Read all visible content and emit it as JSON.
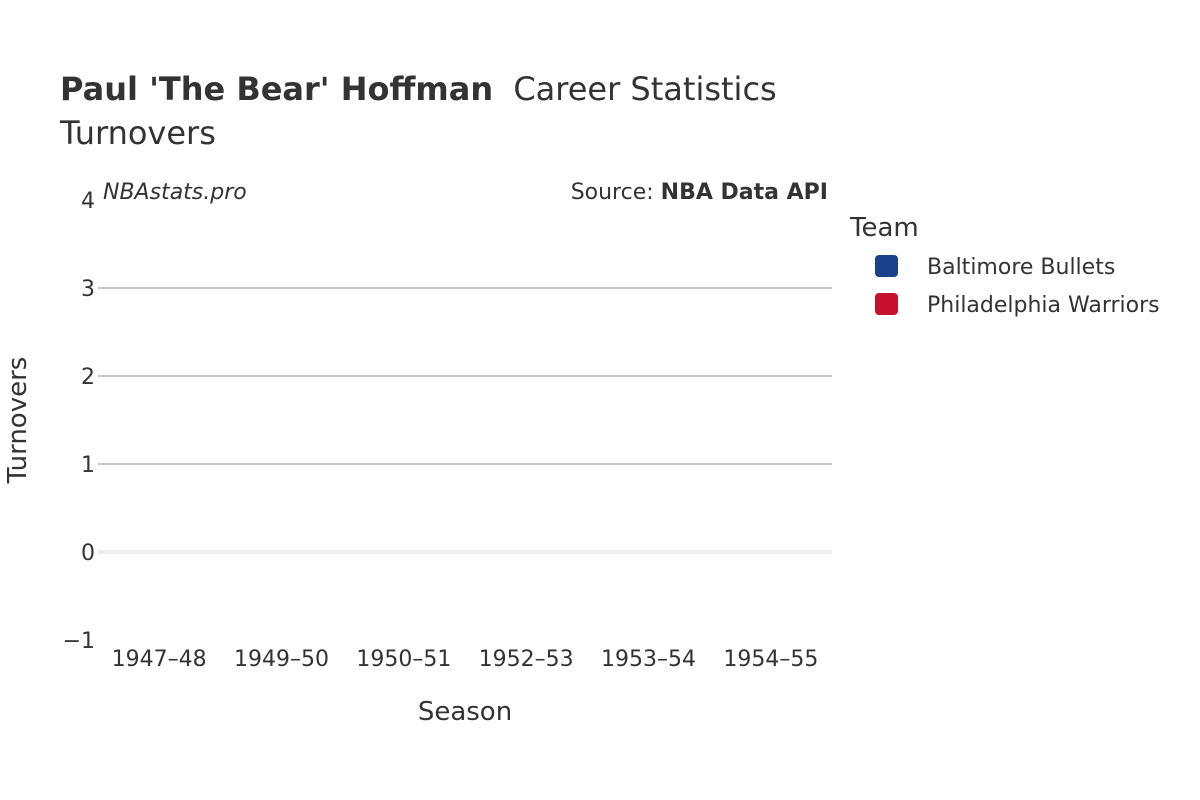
{
  "chart_data": {
    "type": "bar",
    "title_bold": "Paul 'The Bear' Hoffman",
    "title_rest": "Career Statistics",
    "subtitle": "Turnovers",
    "watermark": "NBAstats.pro",
    "source_prefix": "Source: ",
    "source_bold": "NBA Data API",
    "xlabel": "Season",
    "ylabel": "Turnovers",
    "categories": [
      "1947–48",
      "1949–50",
      "1950–51",
      "1952–53",
      "1953–54",
      "1954–55"
    ],
    "ylim": [
      -1,
      4
    ],
    "yticks": [
      -1,
      0,
      1,
      2,
      3,
      4
    ],
    "ytick_labels": [
      "−1",
      "0",
      "1",
      "2",
      "3",
      "4"
    ],
    "grid": true,
    "legend_title": "Team",
    "legend_position": "right",
    "series": [
      {
        "name": "Baltimore Bullets",
        "color": "#1a428a",
        "values": [
          null,
          null,
          null,
          null,
          null,
          null
        ]
      },
      {
        "name": "Philadelphia Warriors",
        "color": "#c8102e",
        "values": [
          null,
          null,
          null,
          null,
          null,
          null
        ]
      }
    ]
  }
}
